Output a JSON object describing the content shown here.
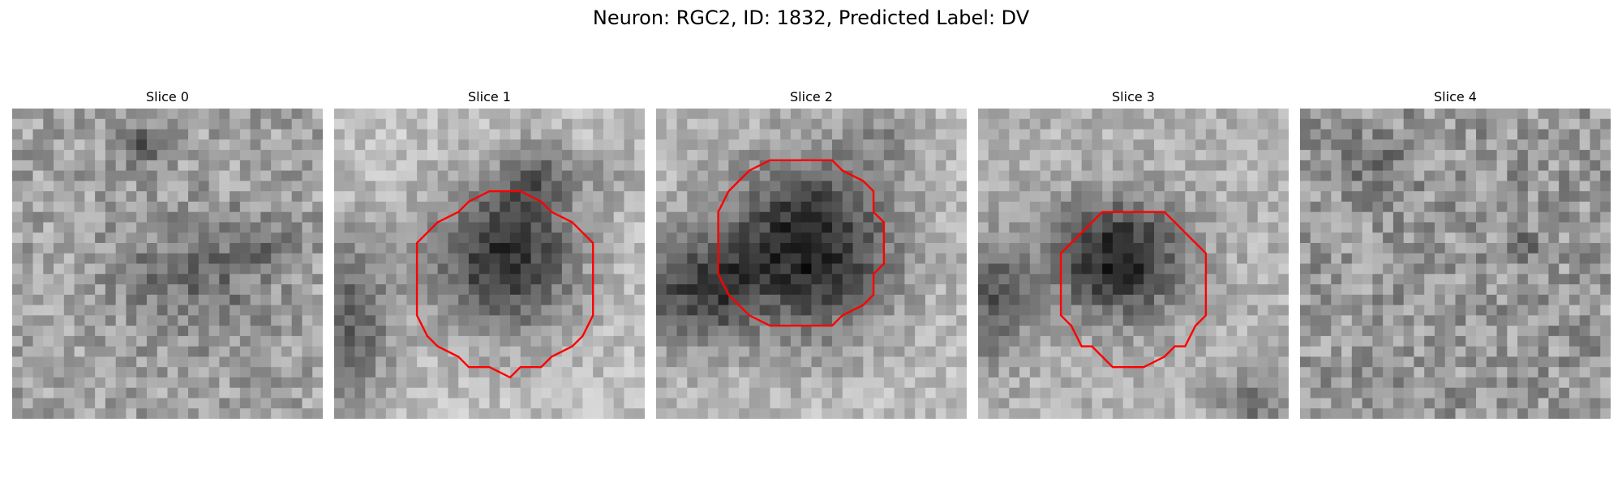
{
  "figure": {
    "title": "Neuron: RGC2, ID: 1832, Predicted Label: DV"
  },
  "slices": [
    {
      "label": "Slice 0",
      "has_roi": false
    },
    {
      "label": "Slice 1",
      "has_roi": true
    },
    {
      "label": "Slice 2",
      "has_roi": true
    },
    {
      "label": "Slice 3",
      "has_roi": true
    },
    {
      "label": "Slice 4",
      "has_roi": false
    }
  ],
  "colors": {
    "roi_outline": "#ff0000",
    "background": "#ffffff"
  },
  "colormap": "grayscale"
}
